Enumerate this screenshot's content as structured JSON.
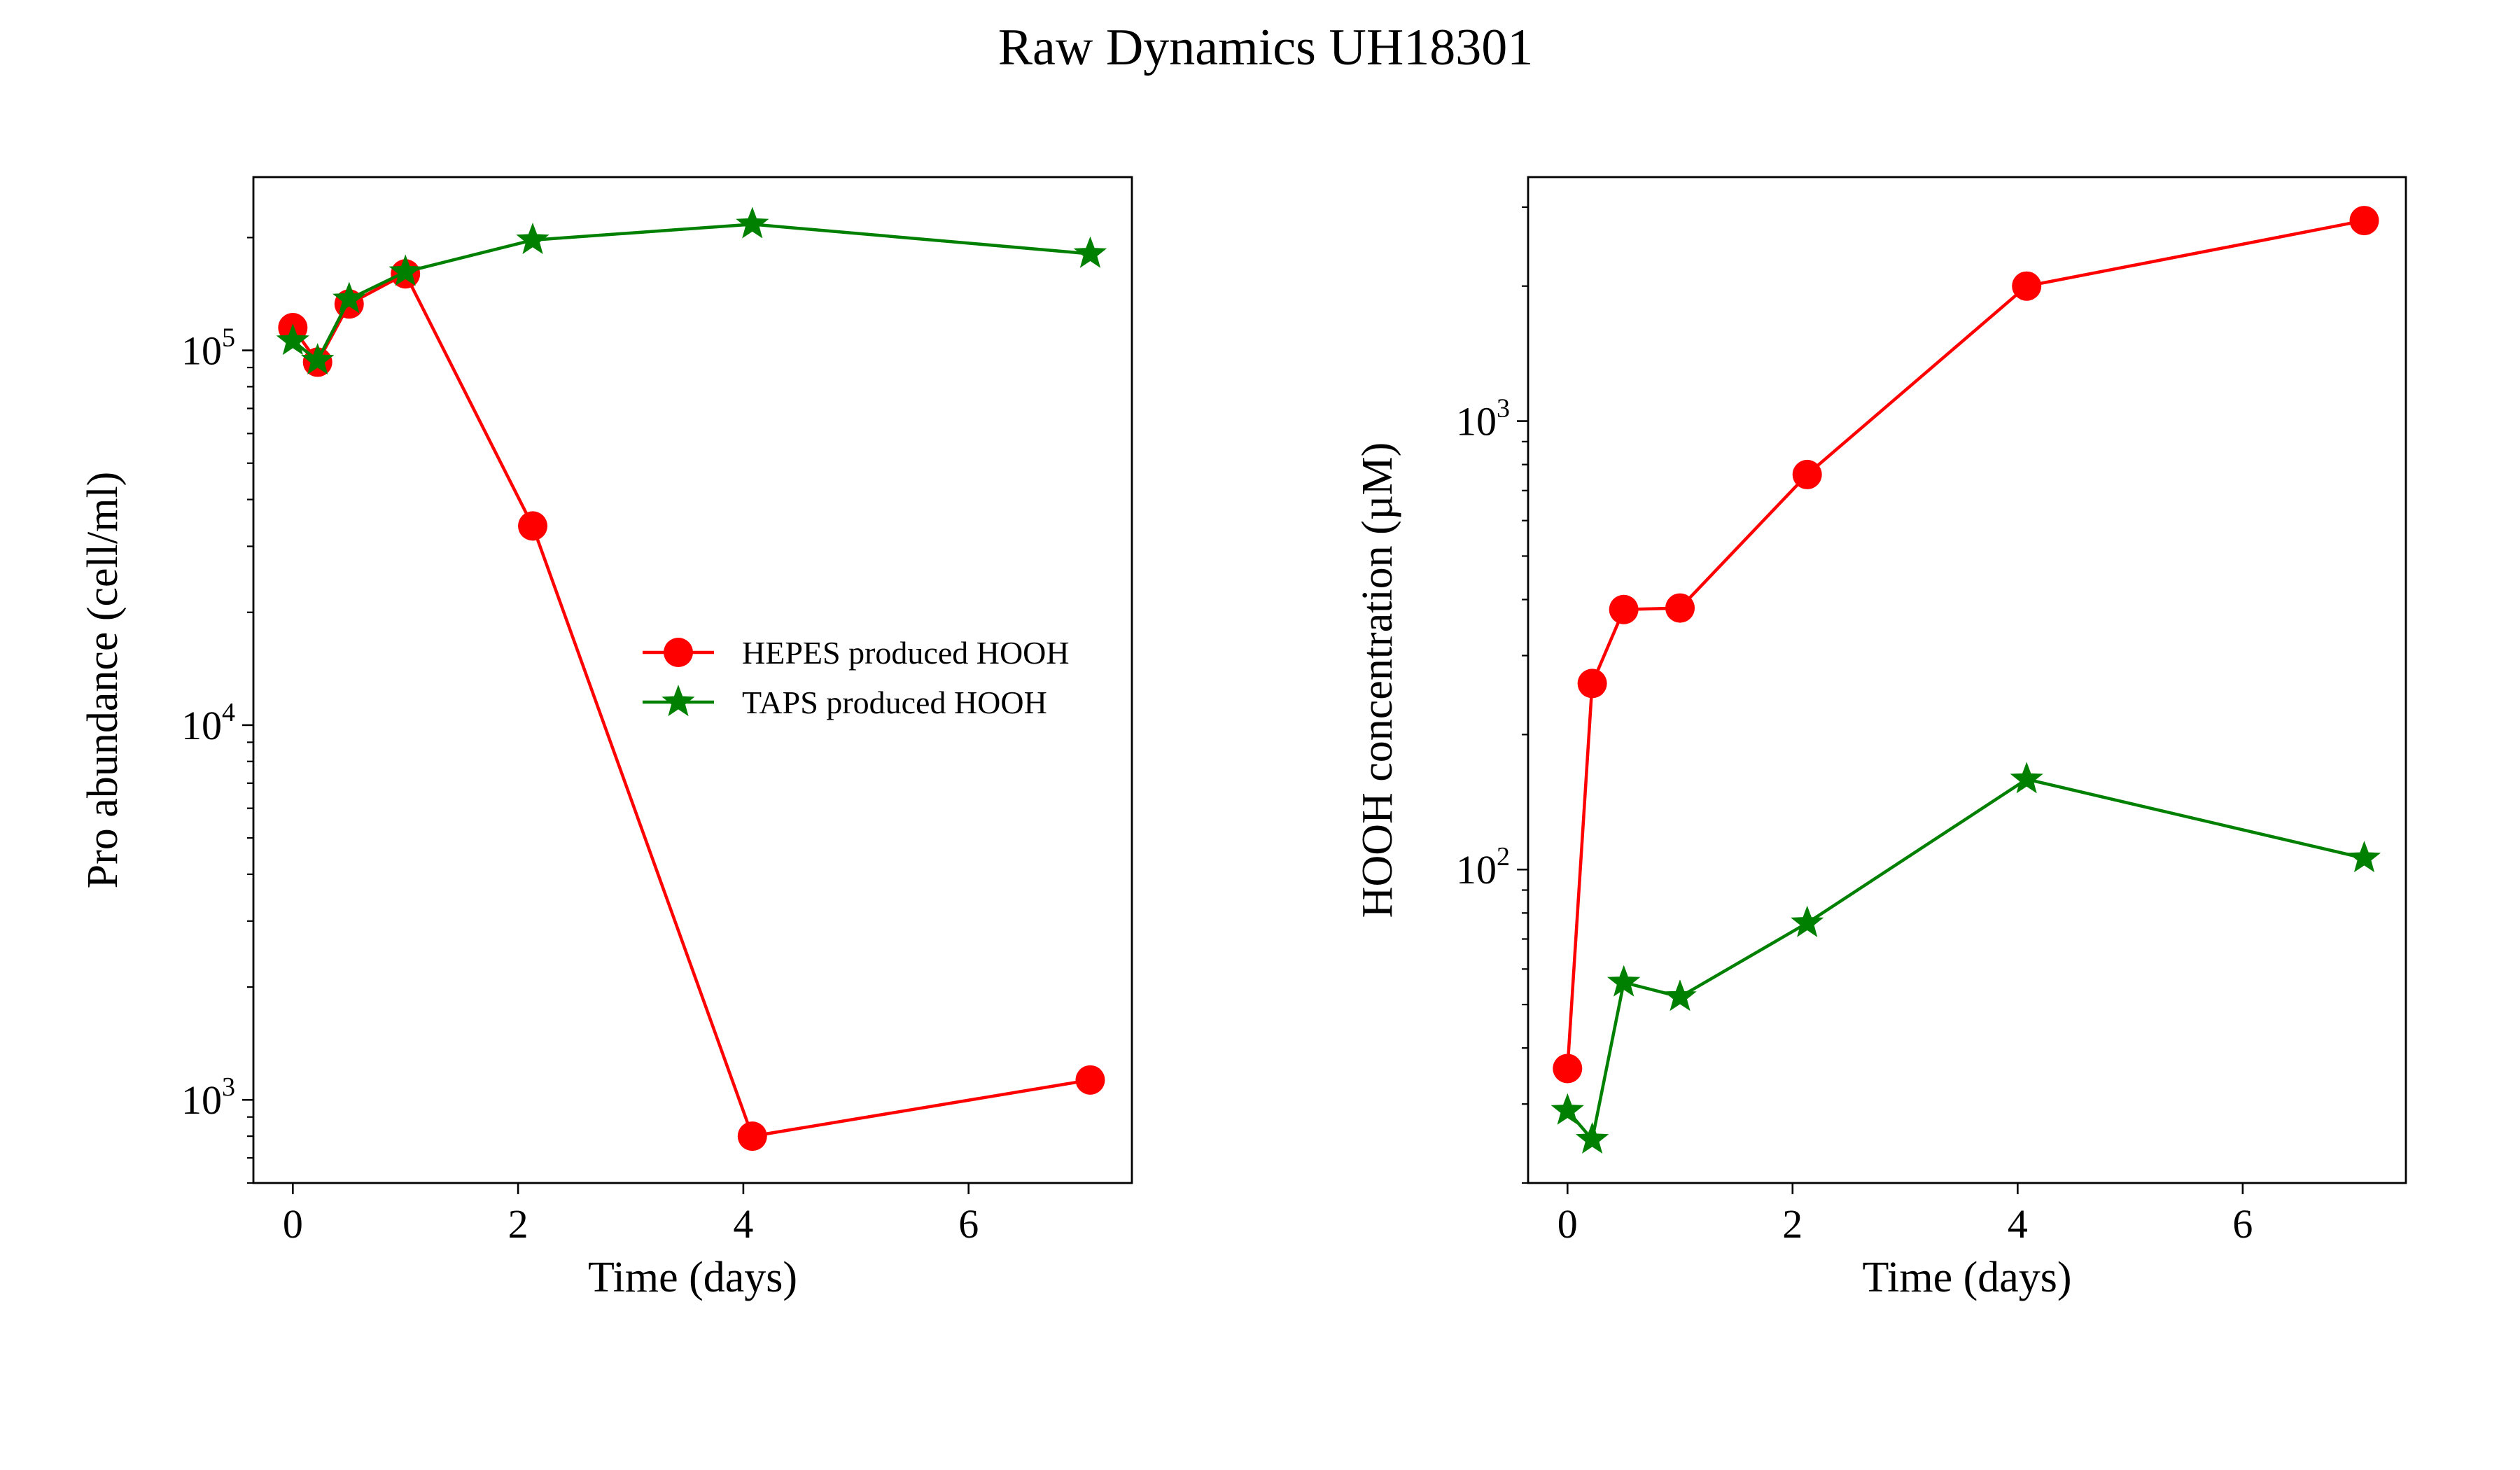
{
  "figure": {
    "title": "Raw Dynamics UH18301"
  },
  "chart_data": [
    {
      "type": "line",
      "title": "",
      "xlabel": "Time (days)",
      "ylabel": "Pro abundance (cell/ml)",
      "yscale": "log",
      "xlim": [
        -0.35,
        7.45
      ],
      "ylim": [
        600,
        290000
      ],
      "xticks": [
        0,
        2,
        4,
        6
      ],
      "xtick_labels": [
        "0",
        "2",
        "4",
        "6"
      ],
      "yticks": [
        1000,
        10000,
        100000
      ],
      "ytick_labels": [
        {
          "base": "10",
          "exp": "3"
        },
        {
          "base": "10",
          "exp": "4"
        },
        {
          "base": "10",
          "exp": "5"
        }
      ],
      "grid": false,
      "legend": "center-right",
      "series": [
        {
          "name": "HEPES produced HOOH",
          "color": "#ff0000",
          "marker": "circle",
          "x": [
            0,
            0.22,
            0.5,
            1.0,
            2.13,
            4.08,
            7.08
          ],
          "y": [
            115000,
            93000,
            133000,
            160000,
            34000,
            800,
            1130
          ]
        },
        {
          "name": "TAPS produced HOOH",
          "color": "#008000",
          "marker": "star",
          "x": [
            0,
            0.22,
            0.5,
            1.0,
            2.13,
            4.08,
            7.08
          ],
          "y": [
            106000,
            94000,
            137000,
            162000,
            197000,
            217000,
            181000
          ]
        }
      ]
    },
    {
      "type": "line",
      "title": "",
      "xlabel": "Time (days)",
      "ylabel": "HOOH concentration (µM)",
      "yscale": "log",
      "xlim": [
        -0.35,
        7.45
      ],
      "ylim": [
        20,
        3500
      ],
      "xticks": [
        0,
        2,
        4,
        6
      ],
      "xtick_labels": [
        "0",
        "2",
        "4",
        "6"
      ],
      "yticks": [
        100,
        1000
      ],
      "ytick_labels": [
        {
          "base": "10",
          "exp": "2"
        },
        {
          "base": "10",
          "exp": "3"
        }
      ],
      "grid": false,
      "legend": "none",
      "series": [
        {
          "name": "HEPES produced HOOH",
          "color": "#ff0000",
          "marker": "circle",
          "x": [
            0,
            0.22,
            0.5,
            1.0,
            2.13,
            4.08,
            7.08
          ],
          "y": [
            36,
            260,
            380,
            383,
            760,
            2000,
            2800
          ]
        },
        {
          "name": "TAPS produced HOOH",
          "color": "#008000",
          "marker": "star",
          "x": [
            0,
            0.22,
            0.5,
            1.0,
            2.13,
            4.08,
            7.08
          ],
          "y": [
            29,
            25,
            56,
            52,
            76,
            159,
            106
          ]
        }
      ]
    }
  ]
}
